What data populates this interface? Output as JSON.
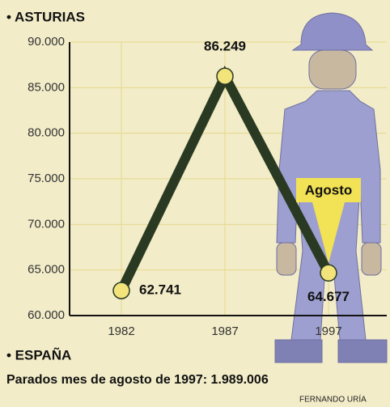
{
  "chart_data": {
    "type": "line",
    "title": "• ASTURIAS",
    "categories": [
      "1982",
      "1987",
      "1997"
    ],
    "series": [
      {
        "name": "Asturias",
        "color": "#2a3a22",
        "values": [
          62741,
          86249,
          64677
        ],
        "value_labels": [
          "62.741",
          "86.249",
          "64.677"
        ]
      }
    ],
    "ylim": [
      60000,
      90000
    ],
    "yticks": [
      {
        "value": 60000,
        "label": "60.000"
      },
      {
        "value": 65000,
        "label": "65.000"
      },
      {
        "value": 70000,
        "label": "70.000"
      },
      {
        "value": 75000,
        "label": "75.000"
      },
      {
        "value": 80000,
        "label": "80.000"
      },
      {
        "value": 85000,
        "label": "85.000"
      },
      {
        "value": 90000,
        "label": "90.000"
      }
    ],
    "grid": true,
    "annotation": "Agosto",
    "section": "• ESPAÑA",
    "note": "Parados mes de agosto de 1997: 1.989.006",
    "credit": "FERNANDO URÍA"
  }
}
